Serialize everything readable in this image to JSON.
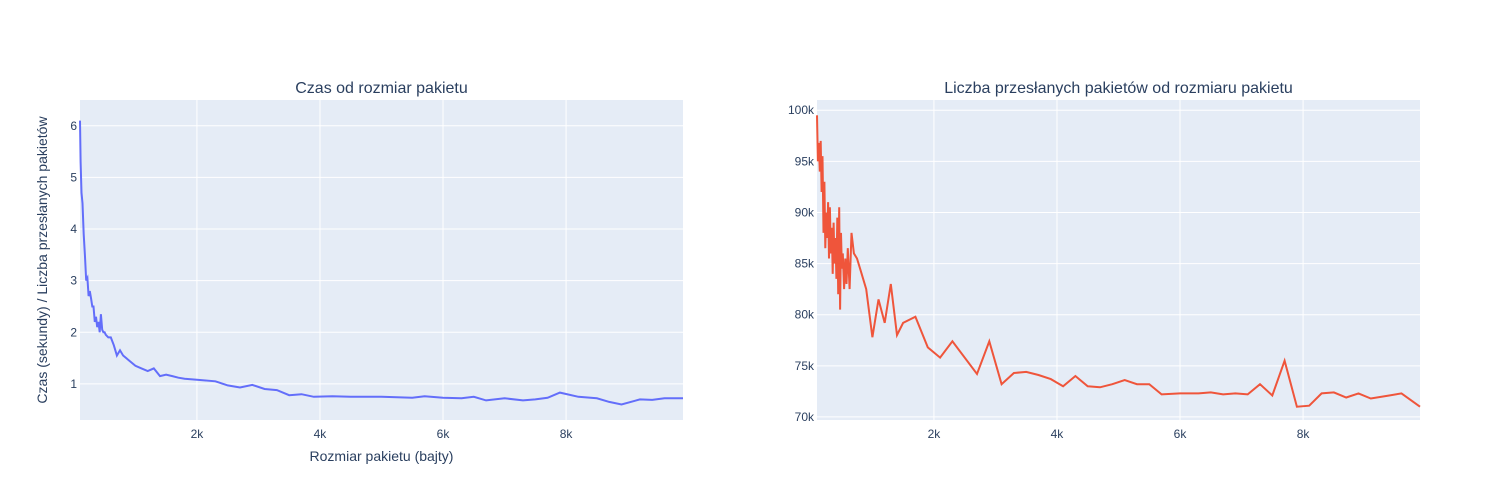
{
  "chart_data": [
    {
      "type": "line",
      "title": "Czas od rozmiar pakietu",
      "xlabel": "Rozmiar pakietu (bajty)",
      "ylabel": "Czas (sekundy) / Liczba przesłanych pakietów",
      "xlim": [
        100,
        9900
      ],
      "ylim": [
        0.3,
        6.5
      ],
      "xticks": [
        {
          "v": 2000,
          "label": "2k"
        },
        {
          "v": 4000,
          "label": "4k"
        },
        {
          "v": 6000,
          "label": "6k"
        },
        {
          "v": 8000,
          "label": "8k"
        }
      ],
      "yticks": [
        {
          "v": 1,
          "label": "1"
        },
        {
          "v": 2,
          "label": "2"
        },
        {
          "v": 3,
          "label": "3"
        },
        {
          "v": 4,
          "label": "4"
        },
        {
          "v": 5,
          "label": "5"
        },
        {
          "v": 6,
          "label": "6"
        }
      ],
      "color": "#636efa",
      "grid": true,
      "series": [
        {
          "x": [
            100,
            110,
            125,
            140,
            160,
            180,
            200,
            220,
            240,
            260,
            280,
            300,
            320,
            340,
            360,
            380,
            400,
            420,
            440,
            460,
            480,
            500,
            520,
            560,
            600,
            650,
            700,
            750,
            800,
            900,
            1000,
            1100,
            1200,
            1300,
            1400,
            1500,
            1600,
            1700,
            1800,
            2000,
            2300,
            2500,
            2700,
            2900,
            3100,
            3300,
            3500,
            3700,
            3900,
            4200,
            4500,
            5000,
            5500,
            5700,
            6000,
            6300,
            6500,
            6700,
            7000,
            7300,
            7500,
            7700,
            7900,
            8200,
            8500,
            8700,
            8900,
            9200,
            9400,
            9600,
            9900
          ],
          "y": [
            6.1,
            5.3,
            4.7,
            4.5,
            3.9,
            3.5,
            3.0,
            3.05,
            2.7,
            2.8,
            2.65,
            2.5,
            2.5,
            2.2,
            2.3,
            2.1,
            2.2,
            2.0,
            2.35,
            2.05,
            2.0,
            2.0,
            1.95,
            1.9,
            1.9,
            1.75,
            1.55,
            1.65,
            1.55,
            1.45,
            1.35,
            1.3,
            1.25,
            1.3,
            1.15,
            1.18,
            1.15,
            1.12,
            1.1,
            1.08,
            1.05,
            0.97,
            0.93,
            0.98,
            0.9,
            0.88,
            0.78,
            0.8,
            0.75,
            0.76,
            0.75,
            0.75,
            0.73,
            0.76,
            0.73,
            0.72,
            0.75,
            0.68,
            0.72,
            0.68,
            0.7,
            0.73,
            0.83,
            0.75,
            0.72,
            0.65,
            0.6,
            0.7,
            0.69,
            0.72,
            0.72
          ]
        }
      ]
    },
    {
      "type": "line",
      "title": "Liczba przesłanych pakietów od rozmiaru pakietu",
      "xlabel": "",
      "ylabel": "",
      "xlim": [
        100,
        9900
      ],
      "ylim": [
        69700,
        101000
      ],
      "xticks": [
        {
          "v": 2000,
          "label": "2k"
        },
        {
          "v": 4000,
          "label": "4k"
        },
        {
          "v": 6000,
          "label": "6k"
        },
        {
          "v": 8000,
          "label": "8k"
        }
      ],
      "yticks": [
        {
          "v": 70000,
          "label": "70k"
        },
        {
          "v": 75000,
          "label": "75k"
        },
        {
          "v": 80000,
          "label": "80k"
        },
        {
          "v": 85000,
          "label": "85k"
        },
        {
          "v": 90000,
          "label": "90k"
        },
        {
          "v": 95000,
          "label": "95k"
        },
        {
          "v": 100000,
          "label": "100k"
        }
      ],
      "color": "#ef553b",
      "grid": true,
      "series": [
        {
          "x": [
            100,
            115,
            130,
            145,
            160,
            175,
            190,
            205,
            220,
            235,
            250,
            265,
            280,
            295,
            310,
            325,
            340,
            355,
            370,
            385,
            400,
            415,
            430,
            445,
            460,
            475,
            490,
            505,
            520,
            540,
            560,
            580,
            600,
            630,
            660,
            700,
            750,
            800,
            900,
            1000,
            1100,
            1200,
            1300,
            1400,
            1500,
            1700,
            1900,
            2100,
            2300,
            2700,
            2900,
            3100,
            3300,
            3500,
            3700,
            3900,
            4100,
            4300,
            4500,
            4700,
            4900,
            5100,
            5300,
            5500,
            5700,
            6000,
            6300,
            6500,
            6700,
            6900,
            7100,
            7300,
            7500,
            7700,
            7900,
            8100,
            8300,
            8500,
            8700,
            8900,
            9100,
            9400,
            9600,
            9900
          ],
          "y": [
            99500,
            95000,
            96800,
            94000,
            97000,
            92000,
            95500,
            88000,
            93000,
            86500,
            90000,
            87500,
            91000,
            85500,
            90500,
            86000,
            88500,
            84000,
            89000,
            85000,
            87500,
            83500,
            89500,
            82000,
            90500,
            80500,
            88000,
            84500,
            86000,
            82500,
            85500,
            83000,
            86500,
            82500,
            88000,
            86000,
            85500,
            84500,
            82500,
            77800,
            81500,
            79200,
            83000,
            78000,
            79200,
            79800,
            76800,
            75800,
            77400,
            74200,
            77400,
            73200,
            74300,
            74400,
            74100,
            73700,
            73000,
            74000,
            73000,
            72900,
            73200,
            73600,
            73200,
            73200,
            72200,
            72300,
            72300,
            72400,
            72200,
            72300,
            72200,
            73200,
            72100,
            75500,
            71000,
            71100,
            72300,
            72400,
            71900,
            72300,
            71800,
            72100,
            72300,
            71000
          ]
        }
      ]
    }
  ]
}
